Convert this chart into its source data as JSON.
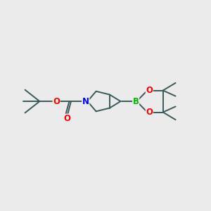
{
  "bg_color": "#EBEBEB",
  "bond_color": "#3A5A5A",
  "bond_width": 1.4,
  "atom_colors": {
    "N": "#0000FF",
    "O": "#FF0000",
    "B": "#00BB00",
    "C": "#3A5A5A"
  },
  "font_size_atom": 8.5,
  "font_size_small": 7.0
}
